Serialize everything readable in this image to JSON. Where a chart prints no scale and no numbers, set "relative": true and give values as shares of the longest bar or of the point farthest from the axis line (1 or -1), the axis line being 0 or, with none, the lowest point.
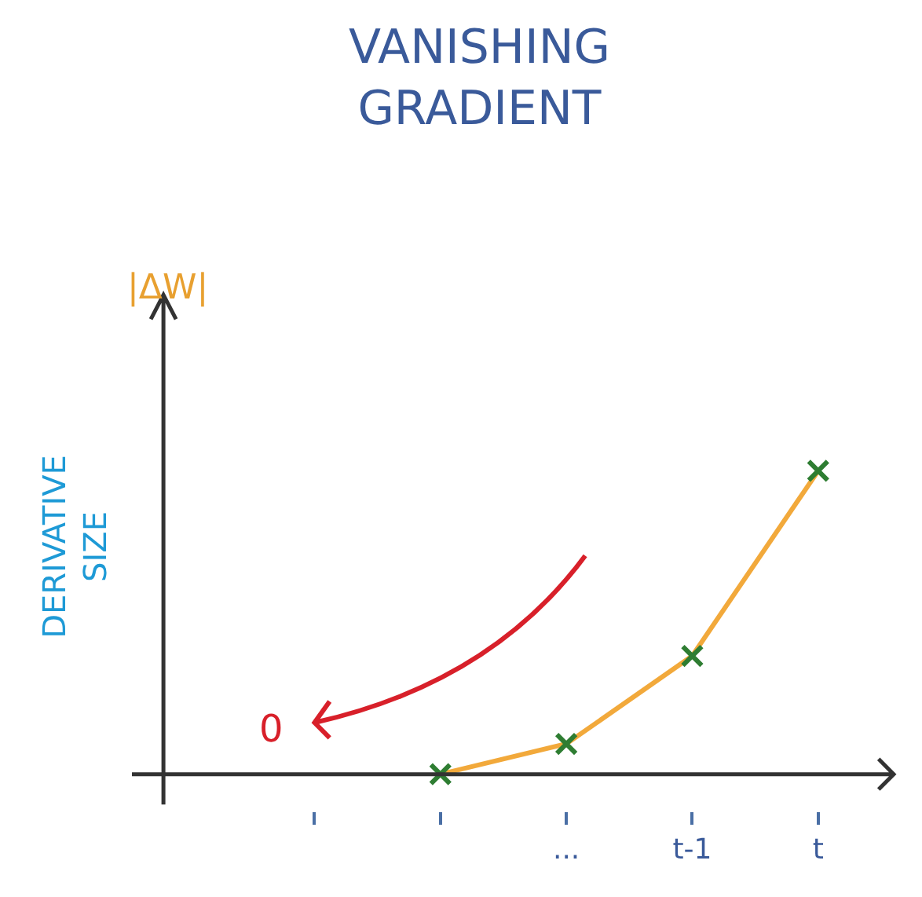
{
  "chart_data": {
    "type": "line",
    "title": "VANISHING\nGRADIENT",
    "ylabel": "DERIVATIVE\nSIZE",
    "annotations": [
      "|ΔW|",
      "0"
    ],
    "categories": [
      null,
      null,
      "...",
      "t-1",
      "t"
    ],
    "series": [
      {
        "color": "#f2a93b",
        "colors": [
          "#2e7d32",
          "#2e7d32",
          "#2e7d32",
          "#2e7d32",
          "#2e7d32"
        ],
        "values": [
          null,
          0,
          0.1,
          0.39,
          1
        ]
      }
    ],
    "relative": true,
    "marker": "cross",
    "line_style": "solid",
    "grid": false,
    "legend": false
  }
}
